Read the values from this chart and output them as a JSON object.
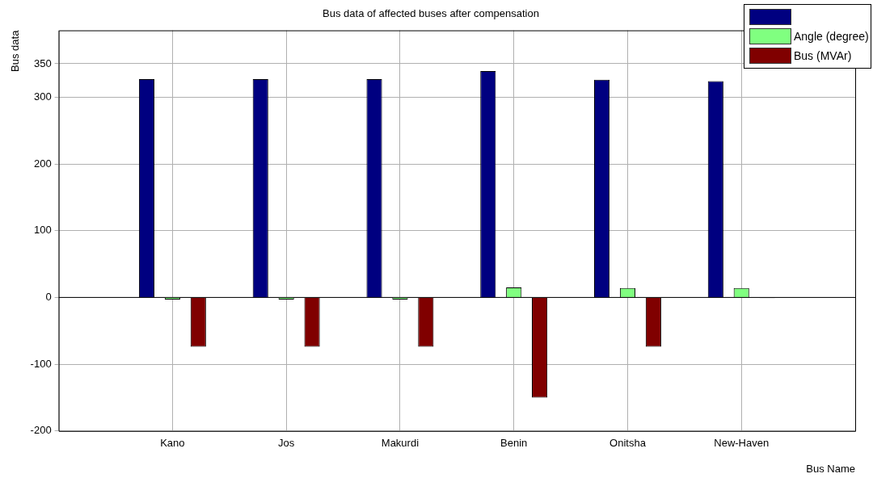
{
  "chart_data": {
    "type": "bar",
    "title": "Bus data of affected buses after compensation",
    "xlabel": "Bus Name",
    "ylabel": "Bus data",
    "categories": [
      "Kano",
      "Jos",
      "Makurdi",
      "Benin",
      "Onitsha",
      "New-Haven"
    ],
    "series": [
      {
        "color": "#000080",
        "values": [
          327,
          327,
          327,
          339,
          326,
          324
        ]
      },
      {
        "name": "Angle (degree)",
        "color": "#80ff80",
        "values": [
          -3,
          -3,
          -3,
          15,
          14,
          14
        ]
      },
      {
        "name": "Bus (MVAr)",
        "color": "#800000",
        "values": [
          -74,
          -74,
          -74,
          -150,
          -74,
          -1
        ]
      }
    ],
    "ylim": [
      -200,
      400
    ],
    "yticks": [
      -200,
      -100,
      0,
      100,
      200,
      300,
      350
    ],
    "grid": true,
    "legend": "top right"
  }
}
